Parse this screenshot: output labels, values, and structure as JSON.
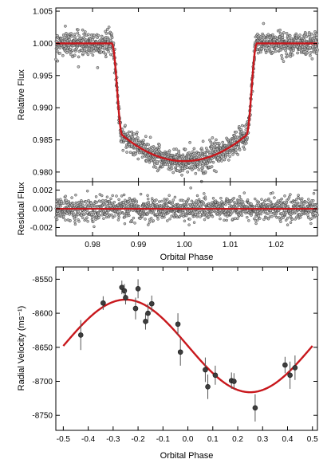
{
  "colors": {
    "model": "#c8171c",
    "points": "#555555",
    "axis": "#000000",
    "background": "#ffffff"
  },
  "chart_data": [
    {
      "type": "scatter",
      "panel": "transit",
      "xlabel": "",
      "ylabel": "Relative Flux",
      "xlim": [
        0.972,
        1.029
      ],
      "ylim": [
        0.9785,
        1.0055
      ],
      "xticks": [
        0.98,
        0.99,
        1.0,
        1.01,
        1.02
      ],
      "yticks": [
        "0.980",
        "0.985",
        "0.990",
        "0.995",
        "1.000",
        "1.005"
      ],
      "model": {
        "mid_phase": 1.0,
        "t14_half_width": 0.0158,
        "t23_half_width": 0.0135,
        "out_of_transit_flux": 1.0,
        "mid_transit_flux": 0.9817
      },
      "point_scatter": 0.0012,
      "grid": false
    },
    {
      "type": "scatter",
      "panel": "residual",
      "xlabel": "Orbital Phase",
      "ylabel": "Residual Flux",
      "xlim": [
        0.972,
        1.029
      ],
      "ylim": [
        -0.0029,
        0.0029
      ],
      "xticks": [
        "0.98",
        "0.99",
        "1.00",
        "1.01",
        "1.02"
      ],
      "yticks": [
        "-0.002",
        "0.000",
        "0.002"
      ],
      "model": {
        "value": 0.0
      },
      "point_scatter": 0.0007,
      "grid": false
    },
    {
      "type": "scatter",
      "panel": "radial-velocity",
      "xlabel": "Orbital Phase",
      "ylabel": "Radial Velocity (ms⁻¹)",
      "xlim": [
        -0.53,
        0.52
      ],
      "ylim": [
        -8772,
        -8532
      ],
      "xticks": [
        "-0.5",
        "-0.4",
        "-0.3",
        "-0.2",
        "-0.1",
        "0.0",
        "0.1",
        "0.2",
        "0.3",
        "0.4",
        "0.5"
      ],
      "yticks": [
        "-8550",
        "-8600",
        "-8650",
        "-8700",
        "-8750"
      ],
      "model": {
        "gamma": -8648,
        "amplitude": 68,
        "phase_of_max": -0.25
      },
      "points": [
        {
          "x": -0.43,
          "y": -8632,
          "err": 22
        },
        {
          "x": -0.34,
          "y": -8585,
          "err": 10
        },
        {
          "x": -0.265,
          "y": -8562,
          "err": 10
        },
        {
          "x": -0.255,
          "y": -8567,
          "err": 10
        },
        {
          "x": -0.25,
          "y": -8577,
          "err": 10
        },
        {
          "x": -0.21,
          "y": -8593,
          "err": 16
        },
        {
          "x": -0.2,
          "y": -8564,
          "err": 14
        },
        {
          "x": -0.17,
          "y": -8612,
          "err": 12
        },
        {
          "x": -0.16,
          "y": -8600,
          "err": 14
        },
        {
          "x": -0.145,
          "y": -8586,
          "err": 12
        },
        {
          "x": -0.04,
          "y": -8616,
          "err": 16
        },
        {
          "x": -0.03,
          "y": -8657,
          "err": 20
        },
        {
          "x": 0.07,
          "y": -8683,
          "err": 18
        },
        {
          "x": 0.08,
          "y": -8708,
          "err": 18
        },
        {
          "x": 0.11,
          "y": -8691,
          "err": 14
        },
        {
          "x": 0.175,
          "y": -8699,
          "err": 12
        },
        {
          "x": 0.185,
          "y": -8700,
          "err": 12
        },
        {
          "x": 0.27,
          "y": -8739,
          "err": 20
        },
        {
          "x": 0.39,
          "y": -8676,
          "err": 12
        },
        {
          "x": 0.41,
          "y": -8691,
          "err": 20
        },
        {
          "x": 0.43,
          "y": -8680,
          "err": 18
        }
      ],
      "grid": false
    }
  ]
}
